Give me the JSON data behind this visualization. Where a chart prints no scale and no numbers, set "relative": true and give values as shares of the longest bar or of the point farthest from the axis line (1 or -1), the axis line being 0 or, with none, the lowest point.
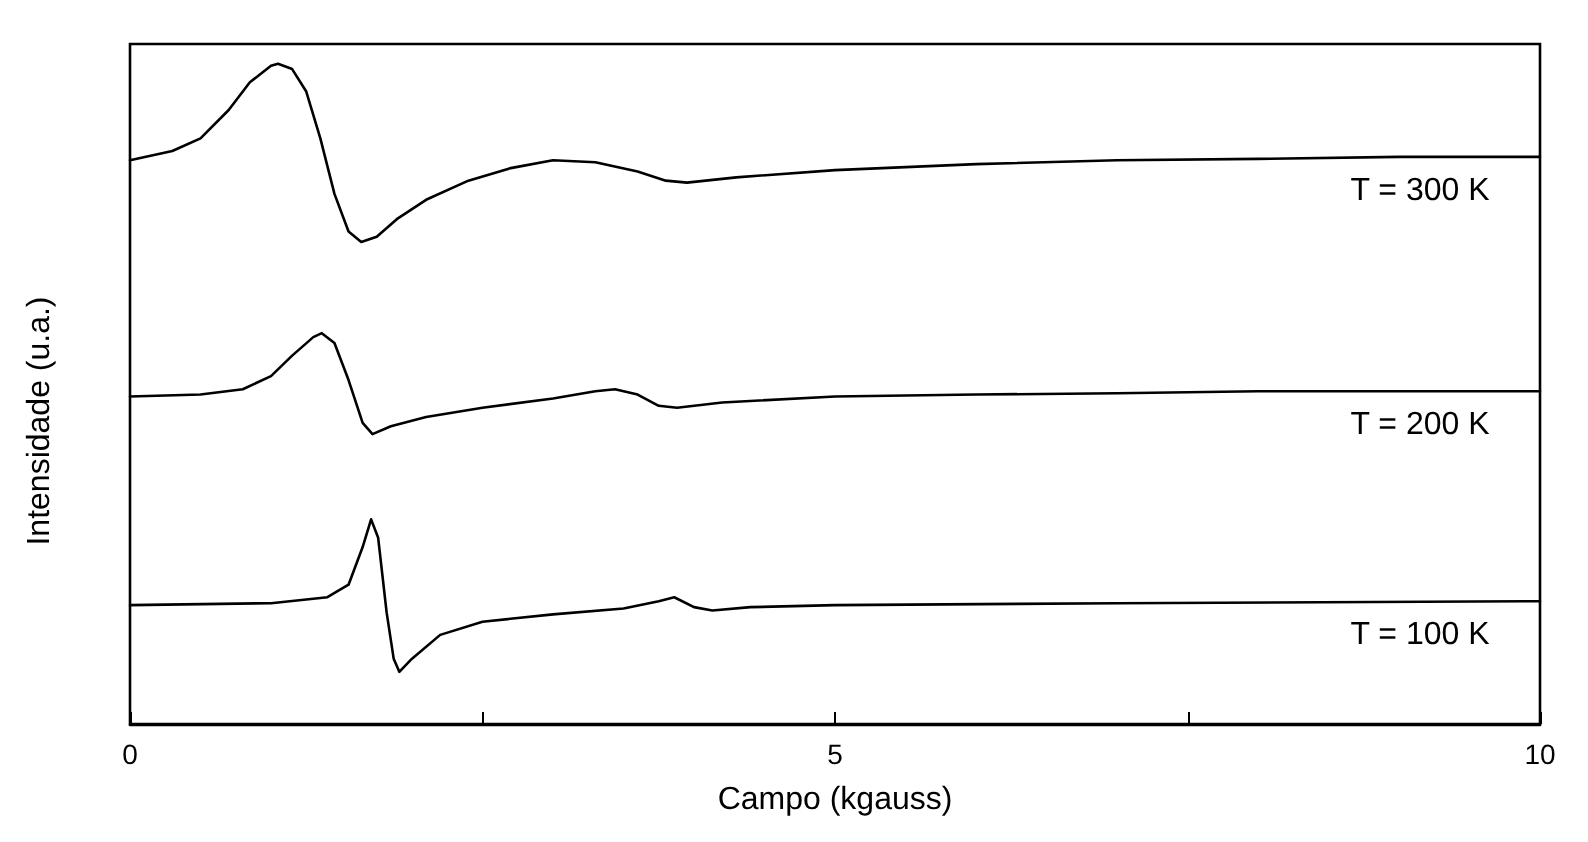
{
  "chart_data": {
    "type": "line",
    "relative": true,
    "xlabel": "Campo (kgauss)",
    "ylabel": "Intensidade (u.a.)",
    "xlim": [
      0,
      10
    ],
    "xticks": [
      0,
      {
        "value": 2.5,
        "label": null
      },
      5,
      {
        "value": 7.5,
        "label": null
      },
      10
    ],
    "tick_labels": "x",
    "grid": false,
    "legend": false,
    "marker": "none",
    "line_style": "solid",
    "series": [
      {
        "name": "T = 300 K",
        "color": "#000000",
        "x": [
          0,
          0.3,
          0.5,
          0.7,
          0.85,
          1.0,
          1.05,
          1.15,
          1.25,
          1.35,
          1.45,
          1.55,
          1.64,
          1.75,
          1.9,
          2.1,
          2.4,
          2.7,
          3.0,
          3.3,
          3.6,
          3.8,
          3.95,
          4.3,
          5,
          6,
          7,
          8,
          9,
          10
        ],
        "values": [
          0.854,
          0.868,
          0.887,
          0.93,
          0.972,
          0.997,
          1,
          0.992,
          0.958,
          0.887,
          0.803,
          0.746,
          0.73,
          0.738,
          0.766,
          0.794,
          0.823,
          0.842,
          0.854,
          0.851,
          0.837,
          0.823,
          0.82,
          0.828,
          0.839,
          0.848,
          0.854,
          0.856,
          0.859,
          0.859
        ]
      },
      {
        "name": "T = 200 K",
        "color": "#000000",
        "x": [
          0,
          0.5,
          0.8,
          1.0,
          1.15,
          1.3,
          1.36,
          1.45,
          1.55,
          1.65,
          1.72,
          1.85,
          2.1,
          2.5,
          3.0,
          3.3,
          3.44,
          3.6,
          3.75,
          3.88,
          4.2,
          5,
          6,
          7,
          8,
          10
        ],
        "values": [
          0.496,
          0.499,
          0.507,
          0.527,
          0.558,
          0.586,
          0.592,
          0.577,
          0.521,
          0.456,
          0.439,
          0.451,
          0.465,
          0.479,
          0.493,
          0.504,
          0.507,
          0.499,
          0.482,
          0.479,
          0.487,
          0.496,
          0.499,
          0.501,
          0.504,
          0.504
        ]
      },
      {
        "name": "T = 100 K",
        "color": "#000000",
        "x": [
          0,
          1.0,
          1.4,
          1.55,
          1.65,
          1.71,
          1.76,
          1.82,
          1.87,
          1.91,
          2.0,
          2.2,
          2.5,
          3.0,
          3.5,
          3.75,
          3.86,
          4.0,
          4.13,
          4.4,
          5,
          7,
          10
        ],
        "values": [
          0.18,
          0.183,
          0.192,
          0.211,
          0.268,
          0.31,
          0.282,
          0.169,
          0.099,
          0.079,
          0.099,
          0.135,
          0.155,
          0.166,
          0.175,
          0.186,
          0.192,
          0.177,
          0.172,
          0.177,
          0.18,
          0.183,
          0.186
        ]
      }
    ]
  }
}
